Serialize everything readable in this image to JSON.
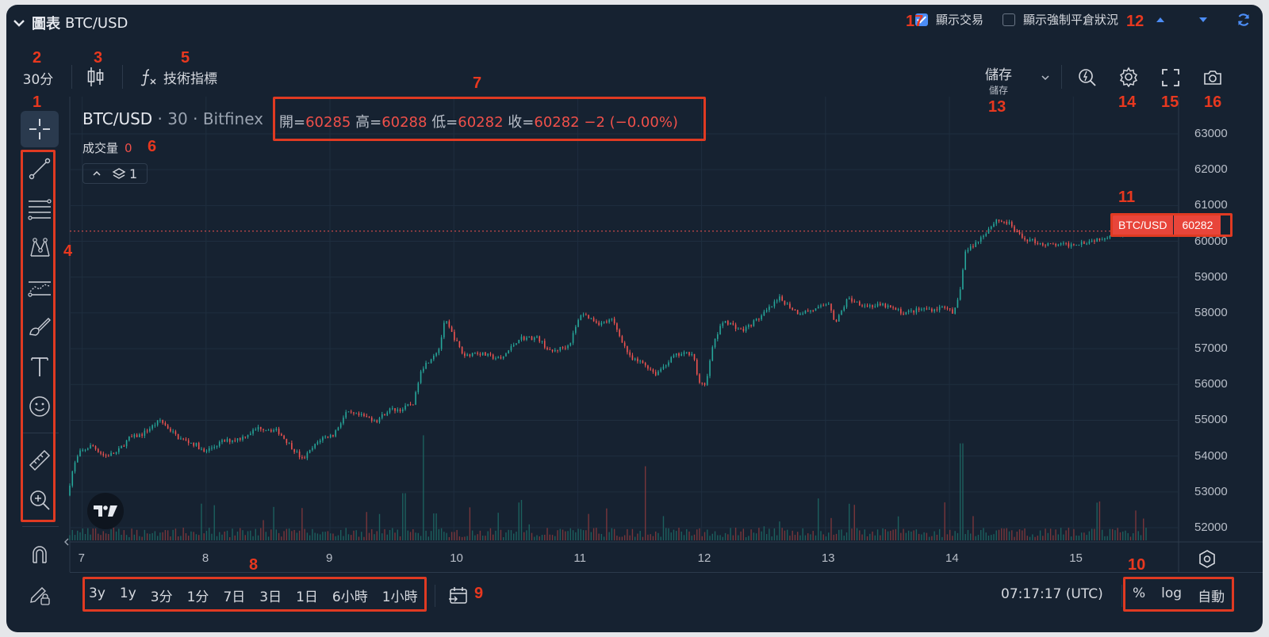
{
  "header": {
    "title": "圖表",
    "symbol": "BTC/USD",
    "show_trades_label": "顯示交易",
    "show_trades_checked": true,
    "show_liquidations_label": "顯示強制平倉狀況",
    "show_liquidations_checked": false
  },
  "toolbar": {
    "interval": "30分",
    "indicators_label": "技術指標",
    "save_label": "儲存",
    "save_sub_label": "儲存"
  },
  "legend": {
    "symbol": "BTC/USD",
    "interval": "30",
    "exchange": "Bitfinex",
    "ohlc": {
      "open_label": "開=",
      "open": "60285",
      "high_label": "高=",
      "high": "60288",
      "low_label": "低=",
      "low": "60282",
      "close_label": "收=",
      "close": "60282",
      "change": "−2 (−0.00%)"
    },
    "volume_label": "成交量",
    "volume_value": "0",
    "collapse_count": "1"
  },
  "price_axis": {
    "ticks": [
      "63000",
      "62000",
      "61000",
      "60000",
      "59000",
      "58000",
      "57000",
      "56000",
      "55000",
      "54000",
      "53000",
      "52000"
    ],
    "last_price_symbol": "BTC/USD",
    "last_price": "60282"
  },
  "time_axis": {
    "ticks": [
      "7",
      "8",
      "9",
      "10",
      "11",
      "12",
      "13",
      "14",
      "15"
    ]
  },
  "bottom": {
    "ranges": [
      "3y",
      "1y",
      "3分",
      "1分",
      "7日",
      "3日",
      "1日",
      "6小時",
      "1小時"
    ],
    "clock": "07:17:17 (UTC)",
    "percent": "%",
    "log": "log",
    "auto": "自動"
  },
  "annotations": [
    "1",
    "2",
    "3",
    "4",
    "5",
    "6",
    "7",
    "8",
    "9",
    "10",
    "11",
    "12",
    "13",
    "14",
    "15",
    "16",
    "17"
  ],
  "chart_data": {
    "type": "candlestick",
    "ylim": [
      51700,
      63300
    ],
    "xlim": [
      6.9,
      15.85
    ],
    "price_anchors": [
      [
        6.9,
        52900
      ],
      [
        6.95,
        53700
      ],
      [
        7.0,
        54100
      ],
      [
        7.1,
        54300
      ],
      [
        7.2,
        54000
      ],
      [
        7.3,
        54100
      ],
      [
        7.4,
        54500
      ],
      [
        7.5,
        54600
      ],
      [
        7.65,
        55000
      ],
      [
        7.8,
        54500
      ],
      [
        7.95,
        54300
      ],
      [
        8.0,
        54100
      ],
      [
        8.15,
        54400
      ],
      [
        8.3,
        54500
      ],
      [
        8.45,
        54800
      ],
      [
        8.6,
        54700
      ],
      [
        8.7,
        54300
      ],
      [
        8.8,
        53900
      ],
      [
        8.95,
        54500
      ],
      [
        9.05,
        54600
      ],
      [
        9.15,
        55200
      ],
      [
        9.3,
        55100
      ],
      [
        9.4,
        55000
      ],
      [
        9.5,
        55300
      ],
      [
        9.6,
        55300
      ],
      [
        9.7,
        55500
      ],
      [
        9.75,
        56400
      ],
      [
        9.9,
        57000
      ],
      [
        9.95,
        57800
      ],
      [
        10.1,
        56800
      ],
      [
        10.2,
        56900
      ],
      [
        10.4,
        56700
      ],
      [
        10.55,
        57300
      ],
      [
        10.7,
        57300
      ],
      [
        10.8,
        56900
      ],
      [
        10.95,
        57100
      ],
      [
        11.05,
        58000
      ],
      [
        11.2,
        57700
      ],
      [
        11.3,
        57800
      ],
      [
        11.45,
        56700
      ],
      [
        11.55,
        56600
      ],
      [
        11.65,
        56300
      ],
      [
        11.8,
        56800
      ],
      [
        11.95,
        56900
      ],
      [
        12.0,
        56000
      ],
      [
        12.05,
        56000
      ],
      [
        12.12,
        57200
      ],
      [
        12.2,
        57800
      ],
      [
        12.35,
        57500
      ],
      [
        12.5,
        57900
      ],
      [
        12.65,
        58400
      ],
      [
        12.8,
        58000
      ],
      [
        12.95,
        58100
      ],
      [
        13.05,
        58300
      ],
      [
        13.1,
        57700
      ],
      [
        13.2,
        58400
      ],
      [
        13.35,
        58200
      ],
      [
        13.5,
        58200
      ],
      [
        13.65,
        58000
      ],
      [
        13.8,
        58100
      ],
      [
        13.9,
        58100
      ],
      [
        14.0,
        58200
      ],
      [
        14.05,
        57900
      ],
      [
        14.1,
        58500
      ],
      [
        14.15,
        59700
      ],
      [
        14.25,
        60000
      ],
      [
        14.35,
        60400
      ],
      [
        14.4,
        60600
      ],
      [
        14.5,
        60500
      ],
      [
        14.6,
        60100
      ],
      [
        14.7,
        60000
      ],
      [
        14.8,
        59900
      ],
      [
        14.9,
        59900
      ],
      [
        15.0,
        59900
      ],
      [
        15.05,
        59950
      ],
      [
        15.15,
        60000
      ],
      [
        15.25,
        60100
      ],
      [
        15.35,
        60200
      ],
      [
        15.45,
        60250
      ],
      [
        15.55,
        60285
      ],
      [
        15.6,
        60282
      ]
    ],
    "volume_spikes": [
      [
        9.6,
        0.35
      ],
      [
        9.75,
        0.78
      ],
      [
        9.85,
        0.2
      ],
      [
        10.55,
        0.3
      ],
      [
        11.55,
        0.55
      ],
      [
        11.7,
        0.18
      ],
      [
        14.1,
        0.72
      ],
      [
        14.2,
        0.18
      ],
      [
        15.2,
        0.28
      ],
      [
        15.5,
        0.12
      ]
    ]
  }
}
